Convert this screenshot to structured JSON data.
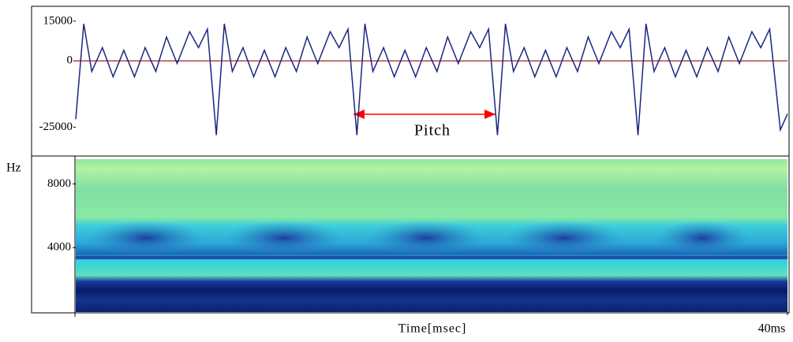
{
  "chart_data": [
    {
      "type": "line",
      "ylim": [
        -35000,
        20000
      ],
      "yticks": [
        15000,
        0,
        -25000
      ],
      "xlim": [
        0,
        40
      ],
      "series": [
        {
          "color": "#1a2680",
          "x": [
            0,
            0.45,
            0.9,
            1.5,
            2.1,
            2.7,
            3.3,
            3.9,
            4.5,
            5.1,
            5.7,
            6.4,
            6.9,
            7.4,
            7.9,
            8.35,
            8.8,
            9.4,
            10,
            10.6,
            11.2,
            11.8,
            12.4,
            13,
            13.6,
            14.3,
            14.8,
            15.3,
            15.8,
            16.25,
            16.7,
            17.3,
            17.9,
            18.5,
            19.1,
            19.7,
            20.3,
            20.9,
            21.5,
            22.2,
            22.7,
            23.2,
            23.7,
            24.15,
            24.6,
            25.2,
            25.8,
            26.4,
            27,
            27.6,
            28.2,
            28.8,
            29.4,
            30.1,
            30.6,
            31.1,
            31.6,
            32.05,
            32.5,
            33.1,
            33.7,
            34.3,
            34.9,
            35.5,
            36.1,
            36.7,
            37.3,
            38,
            38.5,
            39,
            39.6,
            40
          ],
          "values": [
            -22000,
            14000,
            -4000,
            5000,
            -6000,
            4000,
            -6000,
            5000,
            -4000,
            9000,
            -1000,
            11000,
            5000,
            12000,
            -28000,
            14000,
            -4000,
            5000,
            -6000,
            4000,
            -6000,
            5000,
            -4000,
            9000,
            -1000,
            11000,
            5000,
            12000,
            -28000,
            14000,
            -4000,
            5000,
            -6000,
            4000,
            -6000,
            5000,
            -4000,
            9000,
            -1000,
            11000,
            5000,
            12000,
            -28000,
            14000,
            -4000,
            5000,
            -6000,
            4000,
            -6000,
            5000,
            -4000,
            9000,
            -1000,
            11000,
            5000,
            12000,
            -28000,
            14000,
            -4000,
            5000,
            -6000,
            4000,
            -6000,
            5000,
            -4000,
            9000,
            -1000,
            11000,
            5000,
            12000,
            -26000,
            -20000
          ]
        }
      ],
      "zero_line_color": "#a02020",
      "annotations": [
        {
          "text": "Pitch",
          "color": "#ff0000"
        }
      ]
    },
    {
      "type": "spectrogram",
      "ylabel": "Hz",
      "ylim": [
        0,
        9500
      ],
      "yticks": [
        8000,
        4000
      ],
      "xlabel": "Time[msec]",
      "xlim": [
        0,
        40
      ],
      "xticks": [
        {
          "value": 40,
          "label": "40ms"
        }
      ]
    }
  ]
}
